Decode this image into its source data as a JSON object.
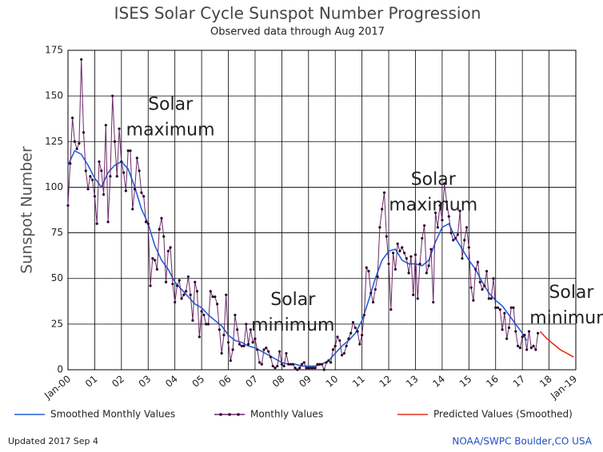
{
  "chart_data": {
    "type": "line",
    "title": "ISES Solar Cycle Sunspot Number Progression",
    "subtitle": "Observed data through Aug 2017",
    "y_label": "Sunspot Number",
    "xlim": [
      "2000-01",
      "2019-01"
    ],
    "xticks": [
      {
        "value": "2000-01",
        "label": "Jan-00"
      },
      {
        "value": "2001-01",
        "label": "01"
      },
      {
        "value": "2002-01",
        "label": "02"
      },
      {
        "value": "2003-01",
        "label": "03"
      },
      {
        "value": "2004-01",
        "label": "04"
      },
      {
        "value": "2005-01",
        "label": "05"
      },
      {
        "value": "2006-01",
        "label": "06"
      },
      {
        "value": "2007-01",
        "label": "07"
      },
      {
        "value": "2008-01",
        "label": "08"
      },
      {
        "value": "2009-01",
        "label": "09"
      },
      {
        "value": "2010-01",
        "label": "10"
      },
      {
        "value": "2011-01",
        "label": "11"
      },
      {
        "value": "2012-01",
        "label": "12"
      },
      {
        "value": "2013-01",
        "label": "13"
      },
      {
        "value": "2014-01",
        "label": "14"
      },
      {
        "value": "2015-01",
        "label": "15"
      },
      {
        "value": "2016-01",
        "label": "16"
      },
      {
        "value": "2017-01",
        "label": "17"
      },
      {
        "value": "2018-01",
        "label": "18"
      },
      {
        "value": "2019-01",
        "label": "Jan-19"
      }
    ],
    "ylim": [
      0,
      175
    ],
    "yticks": [
      0,
      25,
      50,
      75,
      100,
      125,
      150,
      175
    ],
    "grid": true,
    "series": [
      {
        "name": "Smoothed Monthly Values",
        "color": "#1f5fd6",
        "markers": false,
        "x": [
          "2000-01",
          "2000-04",
          "2000-07",
          "2000-10",
          "2001-01",
          "2001-04",
          "2001-07",
          "2001-10",
          "2002-01",
          "2002-04",
          "2002-07",
          "2002-10",
          "2003-01",
          "2003-04",
          "2003-07",
          "2003-10",
          "2004-01",
          "2004-04",
          "2004-07",
          "2004-10",
          "2005-01",
          "2005-04",
          "2005-07",
          "2005-10",
          "2006-01",
          "2006-04",
          "2006-07",
          "2006-10",
          "2007-01",
          "2007-04",
          "2007-07",
          "2007-10",
          "2008-01",
          "2008-04",
          "2008-07",
          "2008-10",
          "2009-01",
          "2009-04",
          "2009-07",
          "2009-10",
          "2010-01",
          "2010-04",
          "2010-07",
          "2010-10",
          "2011-01",
          "2011-04",
          "2011-07",
          "2011-10",
          "2012-01",
          "2012-04",
          "2012-07",
          "2012-10",
          "2013-01",
          "2013-04",
          "2013-07",
          "2013-10",
          "2014-01",
          "2014-04",
          "2014-07",
          "2014-10",
          "2015-01",
          "2015-04",
          "2015-07",
          "2015-10",
          "2016-01",
          "2016-04",
          "2016-07",
          "2016-10",
          "2017-01",
          "2017-03"
        ],
        "values": [
          112,
          120,
          118,
          112,
          105,
          100,
          108,
          112,
          114,
          110,
          100,
          88,
          80,
          68,
          60,
          55,
          48,
          44,
          40,
          36,
          34,
          30,
          27,
          24,
          19,
          16,
          15,
          13,
          12,
          10,
          8,
          6,
          4,
          3,
          3,
          2,
          2,
          2,
          3,
          5,
          9,
          13,
          16,
          20,
          27,
          38,
          50,
          60,
          65,
          66,
          60,
          58,
          58,
          57,
          60,
          70,
          78,
          80,
          72,
          66,
          60,
          55,
          48,
          42,
          38,
          35,
          30,
          25,
          20,
          16
        ]
      },
      {
        "name": "Monthly Values",
        "color": "#6a2a6a",
        "markers": true,
        "x": [
          "2000-01",
          "2000-02",
          "2000-03",
          "2000-04",
          "2000-05",
          "2000-06",
          "2000-07",
          "2000-08",
          "2000-09",
          "2000-10",
          "2000-11",
          "2000-12",
          "2001-01",
          "2001-02",
          "2001-03",
          "2001-04",
          "2001-05",
          "2001-06",
          "2001-07",
          "2001-08",
          "2001-09",
          "2001-10",
          "2001-11",
          "2001-12",
          "2002-01",
          "2002-02",
          "2002-03",
          "2002-04",
          "2002-05",
          "2002-06",
          "2002-07",
          "2002-08",
          "2002-09",
          "2002-10",
          "2002-11",
          "2002-12",
          "2003-01",
          "2003-02",
          "2003-03",
          "2003-04",
          "2003-05",
          "2003-06",
          "2003-07",
          "2003-08",
          "2003-09",
          "2003-10",
          "2003-11",
          "2003-12",
          "2004-01",
          "2004-02",
          "2004-03",
          "2004-04",
          "2004-05",
          "2004-06",
          "2004-07",
          "2004-08",
          "2004-09",
          "2004-10",
          "2004-11",
          "2004-12",
          "2005-01",
          "2005-02",
          "2005-03",
          "2005-04",
          "2005-05",
          "2005-06",
          "2005-07",
          "2005-08",
          "2005-09",
          "2005-10",
          "2005-11",
          "2005-12",
          "2006-01",
          "2006-02",
          "2006-03",
          "2006-04",
          "2006-05",
          "2006-06",
          "2006-07",
          "2006-08",
          "2006-09",
          "2006-10",
          "2006-11",
          "2006-12",
          "2007-01",
          "2007-02",
          "2007-03",
          "2007-04",
          "2007-05",
          "2007-06",
          "2007-07",
          "2007-08",
          "2007-09",
          "2007-10",
          "2007-11",
          "2007-12",
          "2008-01",
          "2008-02",
          "2008-03",
          "2008-04",
          "2008-05",
          "2008-06",
          "2008-07",
          "2008-08",
          "2008-09",
          "2008-10",
          "2008-11",
          "2008-12",
          "2009-01",
          "2009-02",
          "2009-03",
          "2009-04",
          "2009-05",
          "2009-06",
          "2009-07",
          "2009-08",
          "2009-09",
          "2009-10",
          "2009-11",
          "2009-12",
          "2010-01",
          "2010-02",
          "2010-03",
          "2010-04",
          "2010-05",
          "2010-06",
          "2010-07",
          "2010-08",
          "2010-09",
          "2010-10",
          "2010-11",
          "2010-12",
          "2011-01",
          "2011-02",
          "2011-03",
          "2011-04",
          "2011-05",
          "2011-06",
          "2011-07",
          "2011-08",
          "2011-09",
          "2011-10",
          "2011-11",
          "2011-12",
          "2012-01",
          "2012-02",
          "2012-03",
          "2012-04",
          "2012-05",
          "2012-06",
          "2012-07",
          "2012-08",
          "2012-09",
          "2012-10",
          "2012-11",
          "2012-12",
          "2013-01",
          "2013-02",
          "2013-03",
          "2013-04",
          "2013-05",
          "2013-06",
          "2013-07",
          "2013-08",
          "2013-09",
          "2013-10",
          "2013-11",
          "2013-12",
          "2014-01",
          "2014-02",
          "2014-03",
          "2014-04",
          "2014-05",
          "2014-06",
          "2014-07",
          "2014-08",
          "2014-09",
          "2014-10",
          "2014-11",
          "2014-12",
          "2015-01",
          "2015-02",
          "2015-03",
          "2015-04",
          "2015-05",
          "2015-06",
          "2015-07",
          "2015-08",
          "2015-09",
          "2015-10",
          "2015-11",
          "2015-12",
          "2016-01",
          "2016-02",
          "2016-03",
          "2016-04",
          "2016-05",
          "2016-06",
          "2016-07",
          "2016-08",
          "2016-09",
          "2016-10",
          "2016-11",
          "2016-12",
          "2017-01",
          "2017-02",
          "2017-03",
          "2017-04",
          "2017-05",
          "2017-06",
          "2017-07",
          "2017-08"
        ],
        "values": [
          90,
          113,
          138,
          125,
          121,
          124,
          170,
          130,
          109,
          99,
          106,
          104,
          95,
          80,
          114,
          109,
          96,
          134,
          81,
          106,
          150,
          125,
          106,
          132,
          114,
          108,
          98,
          120,
          120,
          88,
          99,
          116,
          109,
          97,
          95,
          81,
          80,
          46,
          61,
          60,
          55,
          77,
          83,
          73,
          48,
          65,
          67,
          47,
          37,
          46,
          49,
          39,
          41,
          43,
          51,
          41,
          27,
          48,
          43,
          18,
          32,
          30,
          25,
          25,
          43,
          40,
          40,
          36,
          22,
          9,
          19,
          41,
          15,
          5,
          11,
          30,
          22,
          14,
          13,
          13,
          25,
          14,
          22,
          15,
          17,
          11,
          4,
          3,
          11,
          12,
          10,
          7,
          2,
          1,
          2,
          10,
          3,
          2,
          9,
          3,
          3,
          3,
          1,
          0,
          1,
          3,
          4,
          1,
          1,
          1,
          1,
          1,
          3,
          3,
          3,
          0,
          4,
          5,
          4,
          11,
          13,
          18,
          16,
          8,
          9,
          13,
          17,
          20,
          26,
          23,
          21,
          14,
          19,
          30,
          56,
          54,
          42,
          37,
          44,
          51,
          78,
          88,
          97,
          73,
          58,
          33,
          64,
          55,
          69,
          65,
          67,
          64,
          61,
          53,
          62,
          41,
          63,
          39,
          58,
          72,
          79,
          53,
          57,
          66,
          37,
          86,
          78,
          90,
          82,
          102,
          92,
          84,
          75,
          71,
          72,
          74,
          87,
          61,
          71,
          78,
          67,
          45,
          38,
          55,
          59,
          48,
          44,
          46,
          54,
          39,
          39,
          50,
          34,
          34,
          33,
          22,
          31,
          17,
          23,
          34,
          34,
          21,
          13,
          12,
          18,
          19,
          11,
          21,
          12,
          13,
          11,
          20
        ]
      },
      {
        "name": "Predicted Values (Smoothed)",
        "color": "#e0301e",
        "markers": false,
        "x": [
          "2017-09",
          "2017-12",
          "2018-03",
          "2018-06",
          "2018-09",
          "2018-12"
        ],
        "values": [
          21,
          17,
          14,
          11,
          9,
          7
        ]
      }
    ],
    "annotations": [
      {
        "lines": [
          "Solar",
          "maximum"
        ],
        "x": "2003-11",
        "y": 145
      },
      {
        "lines": [
          "Solar",
          "maximum"
        ],
        "x": "2013-09",
        "y": 104
      },
      {
        "lines": [
          "Solar",
          "minimum"
        ],
        "x": "2008-06",
        "y": 38
      },
      {
        "lines": [
          "Solar",
          "minimum"
        ],
        "x": "2018-11",
        "y": 42
      }
    ],
    "footer_left": "Updated 2017 Sep  4",
    "footer_right": "NOAA/SWPC Boulder,CO USA"
  }
}
